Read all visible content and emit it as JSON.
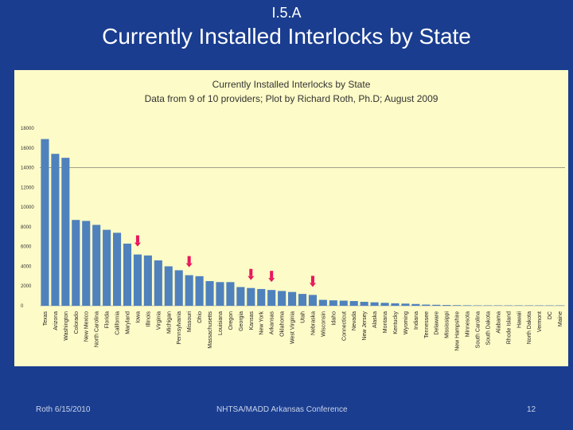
{
  "slide": {
    "label": "I.5.A",
    "title": "Currently Installed Interlocks by State",
    "footer_date": "Roth 6/15/2010",
    "footer_conference": "NHTSA/MADD Arkansas Conference",
    "footer_page": "12"
  },
  "colors": {
    "background": "#1a3d8f",
    "panel": "#fdfbc7",
    "bar": "#4f81bd",
    "marker": "#e8175d"
  },
  "chart_data": {
    "type": "bar",
    "title": "Currently Installed Interlocks by State",
    "subtitle": "Data from 9 of 10 providers; Plot by Richard Roth, Ph.D; August 2009",
    "xlabel": "",
    "ylabel": "",
    "ylim": [
      0,
      18000
    ],
    "yticks": [
      0,
      2000,
      4000,
      6000,
      8000,
      10000,
      12000,
      14000,
      16000,
      18000
    ],
    "reference_line": 14000,
    "categories": [
      "Texas",
      "Arizona",
      "Washington",
      "Colorado",
      "New Mexico",
      "North Carolina",
      "Florida",
      "California",
      "Maryland",
      "Iowa",
      "Illinois",
      "Virginia",
      "Michigan",
      "Pennsylvania",
      "Missouri",
      "Ohio",
      "Massachusetts",
      "Louisiana",
      "Oregon",
      "Georgia",
      "Kansas",
      "New York",
      "Arkansas",
      "Oklahoma",
      "West Virginia",
      "Utah",
      "Nebraska",
      "Wisconsin",
      "Idaho",
      "Connecticut",
      "Nevada",
      "New Jersey",
      "Alaska",
      "Montana",
      "Kentucky",
      "Wyoming",
      "Indiana",
      "Tennessee",
      "Delaware",
      "Mississippi",
      "New Hampshire",
      "Minnesota",
      "South Carolina",
      "South Dakota",
      "Alabama",
      "Rhode Island",
      "Hawaii",
      "North Dakota",
      "Vermont",
      "DC",
      "Maine"
    ],
    "values": [
      16900,
      15400,
      15000,
      8700,
      8600,
      8200,
      7700,
      7400,
      6300,
      5200,
      5100,
      4600,
      4000,
      3600,
      3100,
      3000,
      2500,
      2400,
      2400,
      1900,
      1800,
      1700,
      1600,
      1500,
      1400,
      1200,
      1100,
      600,
      550,
      520,
      480,
      400,
      350,
      300,
      250,
      220,
      180,
      120,
      100,
      80,
      60,
      50,
      40,
      30,
      25,
      20,
      15,
      10,
      8,
      5,
      3
    ],
    "highlighted": [
      "Iowa",
      "Missouri",
      "Kansas",
      "Arkansas",
      "Nebraska"
    ]
  }
}
